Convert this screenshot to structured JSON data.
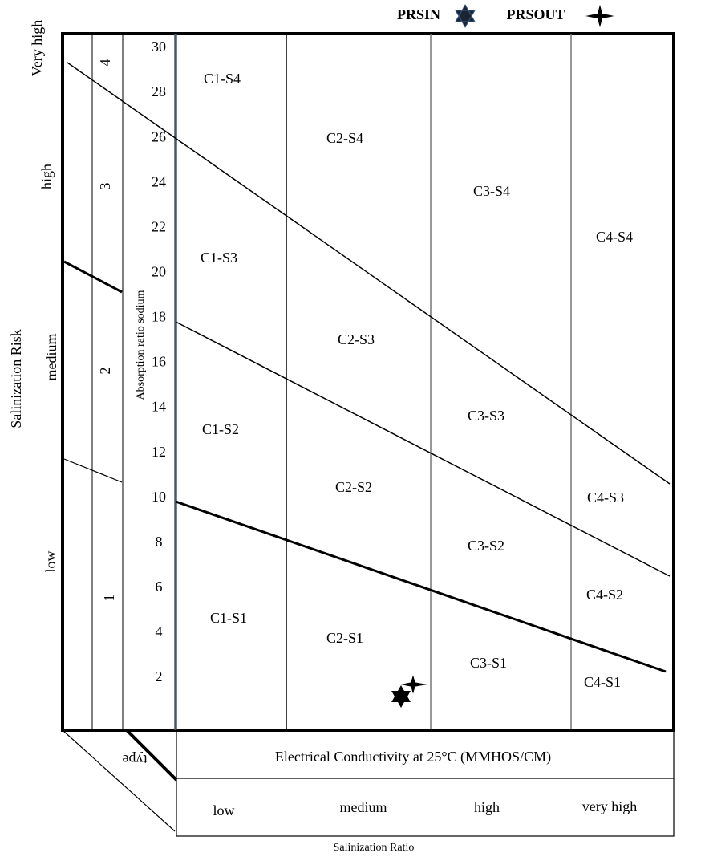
{
  "legend": [
    {
      "label": "PRSIN"
    },
    {
      "label": "PRSOUT"
    }
  ],
  "risk_axis": {
    "title": "Salinization Risk",
    "levels": [
      "Very high",
      "high",
      "medium",
      "low"
    ],
    "classes": [
      "4",
      "3",
      "2",
      "1"
    ]
  },
  "sar_axis": {
    "title": "Absorption ratio sodium",
    "ticks": [
      30,
      28,
      26,
      24,
      22,
      20,
      18,
      16,
      14,
      12,
      10,
      8,
      6,
      4,
      2
    ]
  },
  "regions": [
    "C1-S4",
    "C2-S4",
    "C3-S4",
    "C4-S4",
    "C1-S3",
    "C2-S3",
    "C3-S3",
    "C4-S3",
    "C1-S2",
    "C2-S2",
    "C3-S2",
    "C4-S2",
    "C1-S1",
    "C2-S1",
    "C3-S1",
    "C4-S1"
  ],
  "conductivity": {
    "title": "Electrical Conductivity at 25°C (MMHOS/CM)",
    "classes": [
      "low",
      "medium",
      "high",
      "very high"
    ],
    "corner": "type"
  },
  "footer": "Salinization Ratio"
}
